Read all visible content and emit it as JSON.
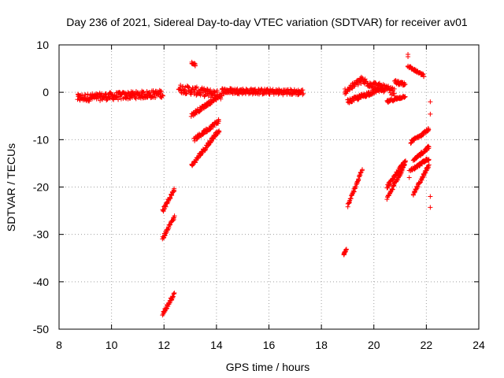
{
  "chart_data": {
    "type": "scatter",
    "title": "Day 236 of 2021, Sidereal Day-to-day VTEC variation (SDTVAR) for receiver av01",
    "xlabel": "GPS time / hours",
    "ylabel": "SDTVAR / TECUs",
    "xlim": [
      8,
      24
    ],
    "ylim": [
      -50,
      10
    ],
    "xticks": [
      8,
      10,
      12,
      14,
      16,
      18,
      20,
      22,
      24
    ],
    "yticks": [
      10,
      0,
      -10,
      -20,
      -30,
      -40,
      -50
    ],
    "grid": true,
    "marker": "+",
    "color": "#ff0000",
    "segments": [
      {
        "x0": 8.7,
        "x1": 11.95,
        "y0": -1.2,
        "y1": -0.3,
        "spread": 1.6
      },
      {
        "x0": 12.55,
        "x1": 14.2,
        "y0": 0.8,
        "y1": -0.6,
        "spread": 1.8
      },
      {
        "x0": 14.2,
        "x1": 17.3,
        "y0": 0.3,
        "y1": 0.0,
        "spread": 1.2
      },
      {
        "x0": 13.05,
        "x1": 13.2,
        "y0": 6.2,
        "y1": 5.8,
        "spread": 0.5
      },
      {
        "x0": 13.05,
        "x1": 14.0,
        "y0": -4.8,
        "y1": -1.2,
        "spread": 0.8
      },
      {
        "x0": 13.15,
        "x1": 14.1,
        "y0": -10.0,
        "y1": -6.0,
        "spread": 0.8
      },
      {
        "x0": 13.05,
        "x1": 14.1,
        "y0": -15.5,
        "y1": -8.0,
        "spread": 0.8
      },
      {
        "x0": 11.95,
        "x1": 12.4,
        "y0": -25.0,
        "y1": -20.5,
        "spread": 0.6
      },
      {
        "x0": 11.95,
        "x1": 12.4,
        "y0": -30.8,
        "y1": -26.2,
        "spread": 0.6
      },
      {
        "x0": 11.95,
        "x1": 12.4,
        "y0": -46.8,
        "y1": -42.5,
        "spread": 0.6
      },
      {
        "x0": 18.85,
        "x1": 18.95,
        "y0": -34.3,
        "y1": -33.2,
        "spread": 0.4
      },
      {
        "x0": 19.0,
        "x1": 19.55,
        "y0": -24.0,
        "y1": -16.5,
        "spread": 0.6
      },
      {
        "x0": 18.9,
        "x1": 19.5,
        "y0": 0.2,
        "y1": 2.5,
        "spread": 1.2
      },
      {
        "x0": 19.5,
        "x1": 20.8,
        "y0": 2.5,
        "y1": 0.0,
        "spread": 1.6
      },
      {
        "x0": 19.0,
        "x1": 20.4,
        "y0": -2.0,
        "y1": 1.0,
        "spread": 0.9
      },
      {
        "x0": 20.8,
        "x1": 21.2,
        "y0": 2.2,
        "y1": 1.5,
        "spread": 0.8
      },
      {
        "x0": 20.5,
        "x1": 21.2,
        "y0": -2.0,
        "y1": -0.8,
        "spread": 0.5
      },
      {
        "x0": 21.3,
        "x1": 21.9,
        "y0": 5.5,
        "y1": 3.5,
        "spread": 0.5
      },
      {
        "x0": 20.5,
        "x1": 21.2,
        "y0": -22.5,
        "y1": -15.0,
        "spread": 0.6
      },
      {
        "x0": 20.5,
        "x1": 21.2,
        "y0": -20.0,
        "y1": -14.5,
        "spread": 0.6
      },
      {
        "x0": 21.4,
        "x1": 22.1,
        "y0": -10.5,
        "y1": -7.8,
        "spread": 0.6
      },
      {
        "x0": 21.5,
        "x1": 22.1,
        "y0": -14.5,
        "y1": -11.5,
        "spread": 0.6
      },
      {
        "x0": 21.4,
        "x1": 22.1,
        "y0": -16.5,
        "y1": -14.0,
        "spread": 0.6
      },
      {
        "x0": 21.5,
        "x1": 22.1,
        "y0": -21.5,
        "y1": -15.5,
        "spread": 0.6
      }
    ],
    "points": [
      {
        "x": 21.3,
        "y": 8.0
      },
      {
        "x": 21.3,
        "y": 7.5
      },
      {
        "x": 22.15,
        "y": -2.0
      },
      {
        "x": 22.15,
        "y": -4.6
      },
      {
        "x": 21.35,
        "y": -16.5
      },
      {
        "x": 21.35,
        "y": -18.0
      },
      {
        "x": 22.15,
        "y": -22.0
      },
      {
        "x": 22.15,
        "y": -24.3
      },
      {
        "x": 18.9,
        "y": 0.0
      }
    ]
  }
}
